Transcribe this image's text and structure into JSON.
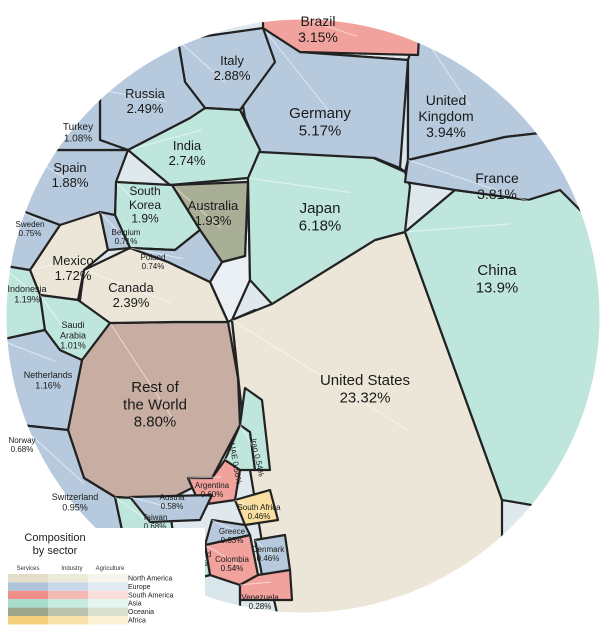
{
  "chart_data": {
    "type": "voronoi-treemap",
    "unit": "%",
    "cells": [
      {
        "name": "United States",
        "value": "23.32%",
        "region": "north-america"
      },
      {
        "name": "China",
        "value": "13.9%",
        "region": "asia"
      },
      {
        "name": "Rest of the World",
        "value": "8.80%",
        "region": "rest"
      },
      {
        "name": "Japan",
        "value": "6.18%",
        "region": "asia"
      },
      {
        "name": "Germany",
        "value": "5.17%",
        "region": "europe"
      },
      {
        "name": "United Kingdom",
        "value": "3.94%",
        "region": "europe"
      },
      {
        "name": "France",
        "value": "3.81%",
        "region": "europe"
      },
      {
        "name": "Brazil",
        "value": "3.15%",
        "region": "south-america"
      },
      {
        "name": "Italy",
        "value": "2.88%",
        "region": "europe"
      },
      {
        "name": "India",
        "value": "2.74%",
        "region": "asia"
      },
      {
        "name": "Russia",
        "value": "2.49%",
        "region": "europe"
      },
      {
        "name": "Canada",
        "value": "2.39%",
        "region": "north-america"
      },
      {
        "name": "Australia",
        "value": "1.93%",
        "region": "oceania"
      },
      {
        "name": "South Korea",
        "value": "1.9%",
        "region": "asia"
      },
      {
        "name": "Spain",
        "value": "1.88%",
        "region": "europe"
      },
      {
        "name": "Mexico",
        "value": "1.72%",
        "region": "north-america"
      },
      {
        "name": "Indonesia",
        "value": "1.19%",
        "region": "asia"
      },
      {
        "name": "Netherlands",
        "value": "1.16%",
        "region": "europe"
      },
      {
        "name": "Turkey",
        "value": "1.08%",
        "region": "europe"
      },
      {
        "name": "Saudi Arabia",
        "value": "1.01%",
        "region": "asia"
      },
      {
        "name": "Switzerland",
        "value": "0.95%",
        "region": "europe"
      },
      {
        "name": "Sweden",
        "value": "0.75%",
        "region": "europe"
      },
      {
        "name": "Poland",
        "value": "0.74%",
        "region": "europe"
      },
      {
        "name": "Belgium",
        "value": "0.71%",
        "region": "europe"
      },
      {
        "name": "Norway",
        "value": "0.68%",
        "region": "europe"
      },
      {
        "name": "Taiwan",
        "value": "0.68%",
        "region": "asia"
      },
      {
        "name": "Argentina",
        "value": "0.60%",
        "region": "south-america"
      },
      {
        "name": "Austria",
        "value": "0.58%",
        "region": "europe"
      },
      {
        "name": "UAE",
        "value": "0.56%",
        "region": "asia"
      },
      {
        "name": "Colombia",
        "value": "0.54%",
        "region": "south-america"
      },
      {
        "name": "Iran",
        "value": "0.54%",
        "region": "asia"
      },
      {
        "name": "Thailand",
        "value": "0.51%",
        "region": "asia"
      },
      {
        "name": "South Africa",
        "value": "0.46%",
        "region": "africa"
      },
      {
        "name": "Denmark",
        "value": "0.46%",
        "region": "europe"
      },
      {
        "name": "Greece",
        "value": "0.33%",
        "region": "europe"
      },
      {
        "name": "Venezuela",
        "value": "0.28%",
        "region": "south-america"
      }
    ],
    "legend": {
      "title": "Composition by sector",
      "columns": [
        "Services",
        "Industry",
        "Agriculture"
      ],
      "rows": [
        "North America",
        "Europe",
        "South America",
        "Asia",
        "Oceania",
        "Africa"
      ],
      "placement": "bottom-left"
    }
  },
  "colors": {
    "north-america": "#ebe6d8",
    "europe": "#b7cadd",
    "south-america": "#f1a29c",
    "asia": "#bfe6dc",
    "oceania": "#a9ae96",
    "africa": "#f8dfa0",
    "rest": "#c7ada2",
    "legend": {
      "north-america": [
        "#e3ddc9",
        "#eeead9",
        "#f7f5ee"
      ],
      "europe": [
        "#aec3da",
        "#c8d8e8",
        "#e2eaf3"
      ],
      "south-america": [
        "#ee8f8a",
        "#f5b9b4",
        "#fadcda"
      ],
      "asia": [
        "#a8dccd",
        "#c6ebe1",
        "#e3f5ef"
      ],
      "oceania": [
        "#9ca58a",
        "#bcc2ad",
        "#dadfd0"
      ],
      "africa": [
        "#f4cf7d",
        "#f8e0a9",
        "#fcf0d4"
      ]
    }
  }
}
